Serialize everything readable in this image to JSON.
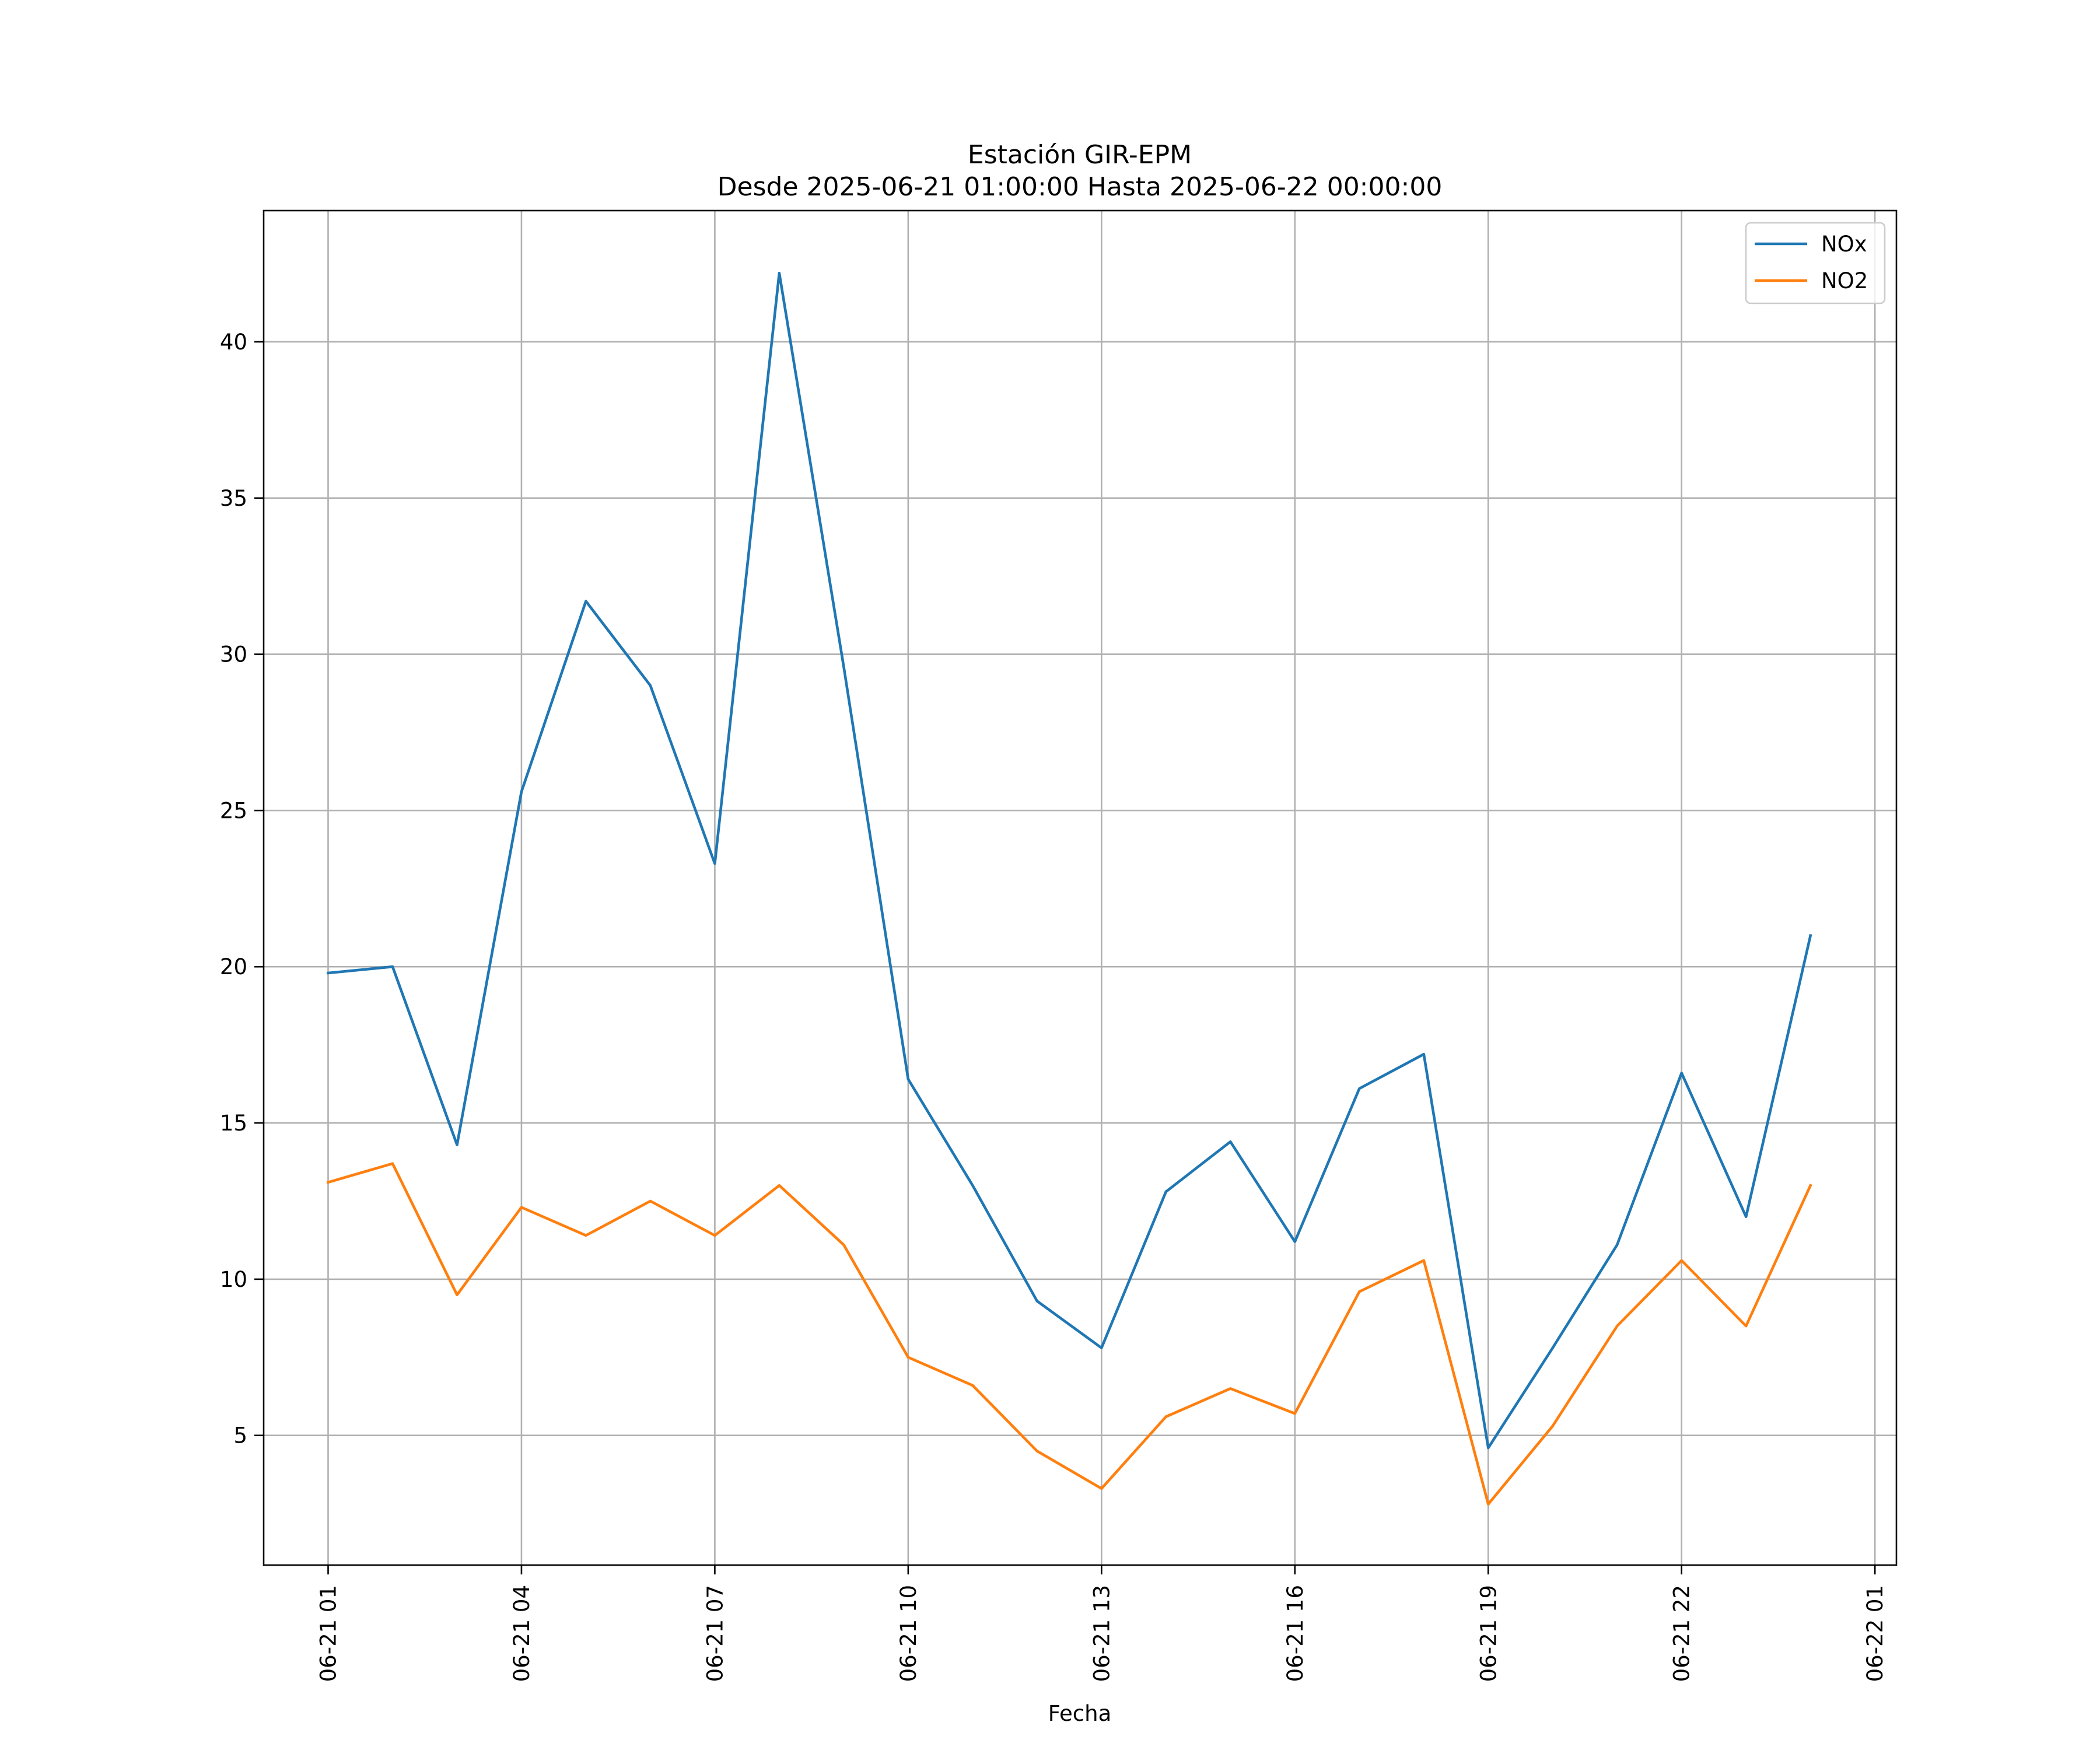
{
  "chart_data": {
    "type": "line",
    "title": "Estación GIR-EPM",
    "subtitle": "Desde 2025-06-21 01:00:00 Hasta 2025-06-22 00:00:00",
    "xlabel": "Fecha",
    "ylabel": "",
    "x": [
      "2025-06-21 01:00",
      "2025-06-21 02:00",
      "2025-06-21 03:00",
      "2025-06-21 04:00",
      "2025-06-21 05:00",
      "2025-06-21 06:00",
      "2025-06-21 07:00",
      "2025-06-21 08:00",
      "2025-06-21 09:00",
      "2025-06-21 10:00",
      "2025-06-21 11:00",
      "2025-06-21 12:00",
      "2025-06-21 13:00",
      "2025-06-21 14:00",
      "2025-06-21 15:00",
      "2025-06-21 16:00",
      "2025-06-21 17:00",
      "2025-06-21 18:00",
      "2025-06-21 19:00",
      "2025-06-21 20:00",
      "2025-06-21 21:00",
      "2025-06-21 22:00",
      "2025-06-21 23:00",
      "2025-06-22 00:00"
    ],
    "xlim": [
      "2025-06-21 00:00",
      "2025-06-22 01:20"
    ],
    "xticks": [
      {
        "value": "2025-06-21 01:00",
        "label": "06-21 01"
      },
      {
        "value": "2025-06-21 04:00",
        "label": "06-21 04"
      },
      {
        "value": "2025-06-21 07:00",
        "label": "06-21 07"
      },
      {
        "value": "2025-06-21 10:00",
        "label": "06-21 10"
      },
      {
        "value": "2025-06-21 13:00",
        "label": "06-21 13"
      },
      {
        "value": "2025-06-21 16:00",
        "label": "06-21 16"
      },
      {
        "value": "2025-06-21 19:00",
        "label": "06-21 19"
      },
      {
        "value": "2025-06-21 22:00",
        "label": "06-21 22"
      },
      {
        "value": "2025-06-22 01:00",
        "label": "06-22 01"
      }
    ],
    "ylim": [
      0.85,
      44.2
    ],
    "yticks": [
      5,
      10,
      15,
      20,
      25,
      30,
      35,
      40
    ],
    "grid": true,
    "legend_position": "upper right",
    "series": [
      {
        "name": "NOx",
        "color": "#1f77b4",
        "values": [
          19.8,
          20.0,
          14.3,
          25.6,
          31.7,
          29.0,
          23.3,
          42.2,
          29.6,
          16.4,
          13.0,
          9.3,
          7.8,
          12.8,
          14.4,
          11.2,
          16.1,
          17.2,
          4.6,
          7.8,
          11.1,
          16.6,
          12.0,
          21.0
        ]
      },
      {
        "name": "NO2",
        "color": "#ff7f0e",
        "values": [
          13.1,
          13.7,
          9.5,
          12.3,
          11.4,
          12.5,
          11.4,
          13.0,
          11.1,
          7.5,
          6.6,
          4.5,
          3.3,
          5.6,
          6.5,
          5.7,
          9.6,
          10.6,
          2.8,
          5.3,
          8.5,
          10.6,
          8.5,
          13.0
        ]
      }
    ]
  }
}
